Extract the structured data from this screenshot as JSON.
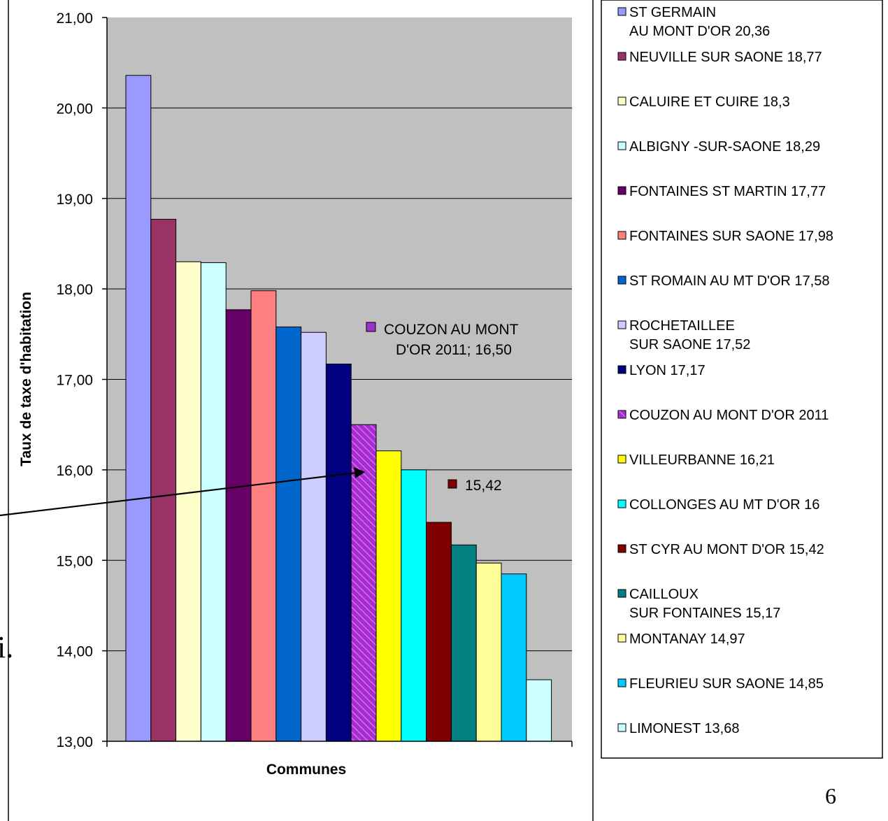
{
  "page_number": "6",
  "stray_glyph": "i.",
  "chart_data": {
    "type": "bar",
    "xlabel": "Communes",
    "ylabel": "Taux de taxe d'habitation",
    "ylim": [
      13,
      21
    ],
    "yticks": [
      "13,00",
      "14,00",
      "15,00",
      "16,00",
      "17,00",
      "18,00",
      "19,00",
      "20,00",
      "21,00"
    ],
    "grid": true,
    "legend_position": "right",
    "series": [
      {
        "legend": "ST GERMAIN\nAU MONT D'OR 20,36",
        "value": 20.36,
        "color": "#9999ff"
      },
      {
        "legend": "NEUVILLE SUR SAONE 18,77",
        "value": 18.77,
        "color": "#993366"
      },
      {
        "legend": "CALUIRE ET CUIRE 18,3",
        "value": 18.3,
        "color": "#ffffcc"
      },
      {
        "legend": "ALBIGNY -SUR-SAONE 18,29",
        "value": 18.29,
        "color": "#ccffff"
      },
      {
        "legend": "FONTAINES ST MARTIN 17,77",
        "value": 17.77,
        "color": "#660066"
      },
      {
        "legend": "FONTAINES SUR SAONE 17,98",
        "value": 17.98,
        "color": "#ff8080"
      },
      {
        "legend": "ST ROMAIN AU MT D'OR 17,58",
        "value": 17.58,
        "color": "#0066cc"
      },
      {
        "legend": "ROCHETAILLEE\nSUR SAONE 17,52",
        "value": 17.52,
        "color": "#ccccff"
      },
      {
        "legend": "LYON 17,17",
        "value": 17.17,
        "color": "#000080"
      },
      {
        "legend": "COUZON AU MONT D'OR 2011",
        "value": 16.5,
        "color": "#9933cc",
        "pattern": "hatch"
      },
      {
        "legend": "VILLEURBANNE 16,21",
        "value": 16.21,
        "color": "#ffff00"
      },
      {
        "legend": "COLLONGES AU MT D'OR 16",
        "value": 16.0,
        "color": "#00ffff"
      },
      {
        "legend": "ST CYR AU MONT D'OR 15,42",
        "value": 15.42,
        "color": "#800000"
      },
      {
        "legend": "CAILLOUX\nSUR FONTAINES 15,17",
        "value": 15.17,
        "color": "#008080"
      },
      {
        "legend": "MONTANAY 14,97",
        "value": 14.97,
        "color": "#ffff99"
      },
      {
        "legend": "FLEURIEU SUR SAONE 14,85",
        "value": 14.85,
        "color": "#00ccff"
      },
      {
        "legend": "LIMONEST 13,68",
        "value": 13.68,
        "color": "#ccffff"
      }
    ],
    "annotations": [
      {
        "lines": [
          "COUZON AU MONT",
          "D'OR 2011; 16,50"
        ],
        "marker_color": "#9933cc",
        "target": 9
      },
      {
        "lines": [
          "15,42"
        ],
        "marker_color": "#800000",
        "target": 12
      }
    ]
  }
}
